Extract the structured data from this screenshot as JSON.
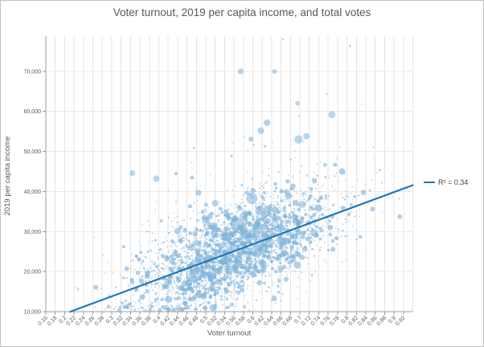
{
  "chart_data": {
    "type": "scatter",
    "title": "Voter turnout, 2019 per capita income, and total votes",
    "xlabel": "Voter turnout",
    "ylabel": "2019 per capita income",
    "xlim": [
      0.16,
      0.94
    ],
    "ylim": [
      10000,
      78800
    ],
    "x_tick_step": 0.02,
    "x_tick_labels": [
      "0.16",
      "0.18",
      "0.2",
      "0.22",
      "0.24",
      "0.26",
      "0.28",
      "0.3",
      "0.32",
      "0.34",
      "0.36",
      "0.38",
      "0.4",
      "0.42",
      "0.44",
      "0.46",
      "0.48",
      "0.5",
      "0.52",
      "0.54",
      "0.56",
      "0.58",
      "0.6",
      "0.62",
      "0.64",
      "0.66",
      "0.68",
      "0.7",
      "0.72",
      "0.74",
      "0.76",
      "0.78",
      "0.8",
      "0.82",
      "0.84",
      "0.86",
      "0.88",
      "0.9",
      "0.92"
    ],
    "y_ticks": [
      10000,
      20000,
      30000,
      40000,
      50000,
      60000,
      70000
    ],
    "y_tick_labels": [
      "10,000",
      "20,000",
      "30,000",
      "40,000",
      "50,000",
      "60,000",
      "70,000"
    ],
    "grid": true,
    "legend": {
      "label": "R² = 0.34",
      "position": "right"
    },
    "trendline": {
      "x1": 0.212,
      "y1": 10000,
      "x2": 0.94,
      "y2": 41600,
      "r_squared": 0.34
    },
    "regression": {
      "slope": 43400,
      "intercept": 800
    },
    "colors": {
      "point": "#7fb3d8",
      "trend": "#2277b8",
      "grid_v": "#e4e4e4",
      "grid_h": "#eaeaea",
      "axis": "#9b9b9b",
      "text": "#595959",
      "legend_text": "#444444",
      "border": "#c0c0c0"
    },
    "bubbles": [
      [
        0.574,
        70000,
        3.6
      ],
      [
        0.646,
        70000,
        2.9
      ],
      [
        0.806,
        76400,
        1.4
      ],
      [
        0.664,
        78000,
        1.2
      ],
      [
        0.617,
        55200,
        4.2
      ],
      [
        0.697,
        53000,
        5.2
      ],
      [
        0.768,
        59200,
        4.4
      ],
      [
        0.714,
        53800,
        4.0
      ],
      [
        0.695,
        62000,
        2.8
      ],
      [
        0.566,
        31800,
        8.2
      ],
      [
        0.598,
        38300,
        7.0
      ],
      [
        0.615,
        35300,
        6.0
      ],
      [
        0.5,
        33000,
        5.2
      ],
      [
        0.517,
        31300,
        5.0
      ],
      [
        0.344,
        44600,
        3.6
      ],
      [
        0.395,
        43200,
        4.0
      ],
      [
        0.66,
        27600,
        5.5
      ],
      [
        0.73,
        29700,
        4.6
      ],
      [
        0.62,
        22100,
        5.0
      ],
      [
        0.55,
        20100,
        4.6
      ],
      [
        0.47,
        26000,
        4.6
      ],
      [
        0.52,
        37100,
        4.2
      ],
      [
        0.44,
        30100,
        4.2
      ],
      [
        0.58,
        33600,
        5.4
      ],
      [
        0.487,
        23600,
        4.8
      ],
      [
        0.543,
        28700,
        5.6
      ],
      [
        0.61,
        30400,
        5.2
      ],
      [
        0.648,
        33100,
        4.8
      ],
      [
        0.705,
        36800,
        4.4
      ],
      [
        0.56,
        26000,
        5.0
      ]
    ],
    "cloud": {
      "seed": 20190,
      "count": 3400,
      "x_mean": 0.557,
      "x_sd": 0.107,
      "x_clip": [
        0.168,
        0.931
      ],
      "noise_sd": 5900,
      "boost_prob": 0.013,
      "boost_min": 6000,
      "boost_max": 26000,
      "y_clip": [
        10250,
        78300
      ],
      "size_base": 0.8,
      "size_pow": 6,
      "size_scale": 2.6,
      "mid_prob": 0.02,
      "mid_min": 2.4,
      "mid_max": 4.6
    }
  }
}
